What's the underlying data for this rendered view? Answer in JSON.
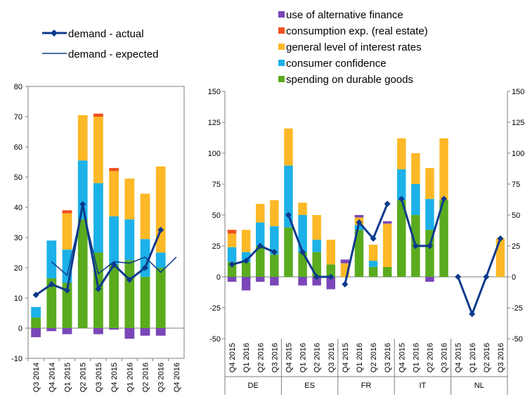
{
  "colors": {
    "spending_durable": "#5aab1e",
    "consumer_confidence": "#1cb1e8",
    "interest_rates": "#fdb827",
    "consumption_real_estate": "#f0501e",
    "alternative_finance": "#7a46b8",
    "line": "#0d3a8c"
  },
  "legend_left": [
    "demand - actual",
    "demand - expected"
  ],
  "legend_right": [
    "use of alternative finance",
    "consumption exp. (real estate)",
    "general level of interest rates",
    "consumer confidence",
    "spending on durable goods"
  ],
  "chart_data": [
    {
      "type": "bar",
      "stacked": true,
      "categories": [
        "Q3 2014",
        "Q4 2014",
        "Q1 2015",
        "Q2 2015",
        "Q3 2015",
        "Q4 2015",
        "Q1 2016",
        "Q2 2016",
        "Q3 2016",
        "Q4 2016"
      ],
      "ylim": [
        -10,
        80
      ],
      "yticks": [
        -10,
        0,
        10,
        20,
        30,
        40,
        50,
        60,
        70,
        80
      ],
      "series": [
        {
          "name": "spending on durable goods",
          "values": [
            3.5,
            16.5,
            15,
            36,
            25,
            21,
            22.5,
            17,
            20,
            null
          ]
        },
        {
          "name": "consumer confidence",
          "values": [
            3.5,
            12.5,
            11,
            19.5,
            23,
            16,
            13.5,
            12.5,
            5,
            null
          ]
        },
        {
          "name": "general level of interest rates",
          "values": [
            0,
            0,
            12,
            15,
            22,
            15,
            13.5,
            15,
            28.5,
            null
          ]
        },
        {
          "name": "consumption exp. (real estate)",
          "values": [
            0,
            0,
            1,
            0,
            1,
            1,
            0,
            0,
            0,
            null
          ]
        },
        {
          "name": "use of alternative finance",
          "values": [
            -3,
            -1,
            -2,
            0,
            -2,
            -0.5,
            -3.5,
            -2.5,
            -2.5,
            null
          ]
        }
      ],
      "lines": [
        {
          "name": "demand - actual",
          "values": [
            11,
            14.5,
            12.5,
            41,
            13,
            21,
            16,
            20,
            32.5,
            null
          ]
        },
        {
          "name": "demand - expected",
          "values": [
            null,
            22,
            17.5,
            40,
            18,
            22,
            21.5,
            23.5,
            18.5,
            23.5
          ]
        }
      ]
    },
    {
      "type": "bar",
      "stacked": true,
      "ylim": [
        -50,
        150
      ],
      "yticks": [
        -50,
        -25,
        0,
        25,
        50,
        75,
        100,
        125,
        150
      ],
      "groups": [
        "DE",
        "ES",
        "FR",
        "IT",
        "NL"
      ],
      "quarters": [
        "Q4 2015",
        "Q1 2016",
        "Q2 2016",
        "Q3 2016"
      ],
      "series": [
        {
          "name": "spending on durable goods",
          "values": [
            [
              12,
              12,
              25,
              18
            ],
            [
              40,
              20,
              20,
              10
            ],
            [
              0,
              38,
              8,
              8
            ],
            [
              62,
              50,
              38,
              62
            ],
            [
              0,
              0,
              0,
              0
            ]
          ]
        },
        {
          "name": "consumer confidence",
          "values": [
            [
              12,
              8,
              19,
              23
            ],
            [
              50,
              30,
              10,
              0
            ],
            [
              0,
              4,
              5,
              0
            ],
            [
              25,
              25,
              25,
              0
            ],
            [
              0,
              0,
              0,
              0
            ]
          ]
        },
        {
          "name": "general level of interest rates",
          "values": [
            [
              11,
              18,
              15,
              21
            ],
            [
              30,
              10,
              20,
              20
            ],
            [
              11,
              6,
              13,
              35
            ],
            [
              25,
              25,
              25,
              50
            ],
            [
              0,
              0,
              0,
              31
            ]
          ]
        },
        {
          "name": "consumption exp. (real estate)",
          "values": [
            [
              3,
              0,
              0,
              0
            ],
            [
              0,
              0,
              0,
              0
            ],
            [
              0,
              0,
              0,
              0
            ],
            [
              0,
              0,
              0,
              0
            ],
            [
              0,
              0,
              0,
              0
            ]
          ]
        },
        {
          "name": "use of alternative finance",
          "values": [
            [
              -4,
              -11,
              -4,
              -7
            ],
            [
              0,
              -7,
              -7,
              -10
            ],
            [
              3,
              2,
              0,
              2
            ],
            [
              0,
              0,
              -4,
              0
            ],
            [
              0,
              0,
              0,
              0
            ]
          ]
        }
      ],
      "lines": [
        {
          "name": "demand - actual",
          "values": [
            [
              10,
              13,
              25,
              20
            ],
            [
              50,
              20,
              0,
              0
            ],
            [
              -6,
              44,
              31,
              59
            ],
            [
              63,
              25,
              25,
              63
            ],
            [
              0,
              -30,
              0,
              31
            ]
          ]
        }
      ]
    }
  ]
}
